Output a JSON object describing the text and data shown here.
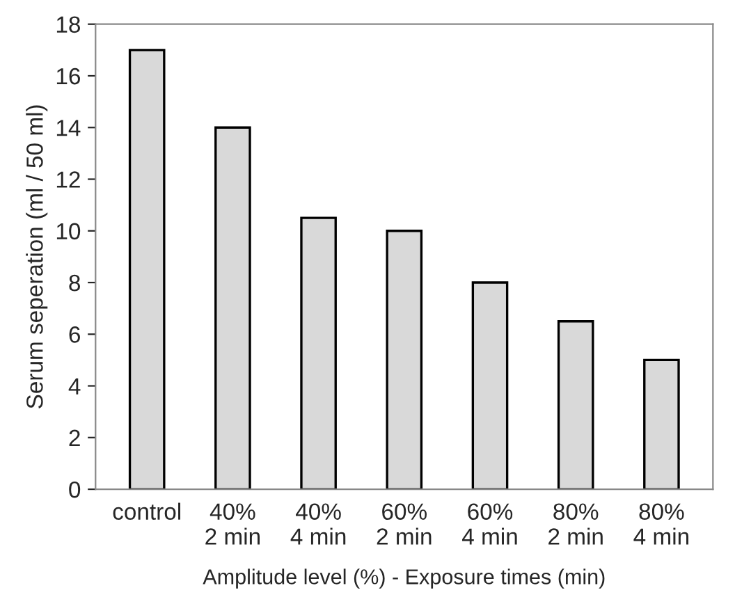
{
  "chart_data": {
    "type": "bar",
    "xlabel": "Amplitude level (%) - Exposure times (min)",
    "ylabel": "Serum seperation (ml / 50 ml)",
    "categories": [
      "control",
      "40%\n2 min",
      "40%\n4 min",
      "60%\n2 min",
      "60%\n4 min",
      "80%\n2 min",
      "80%\n4 min"
    ],
    "values": [
      17,
      14,
      10.5,
      10,
      8,
      6.5,
      5
    ],
    "color": "#d9d9d9",
    "ylim": [
      0,
      18
    ],
    "yticks": [
      0,
      2,
      4,
      6,
      8,
      10,
      12,
      14,
      16,
      18
    ],
    "grid": false
  }
}
